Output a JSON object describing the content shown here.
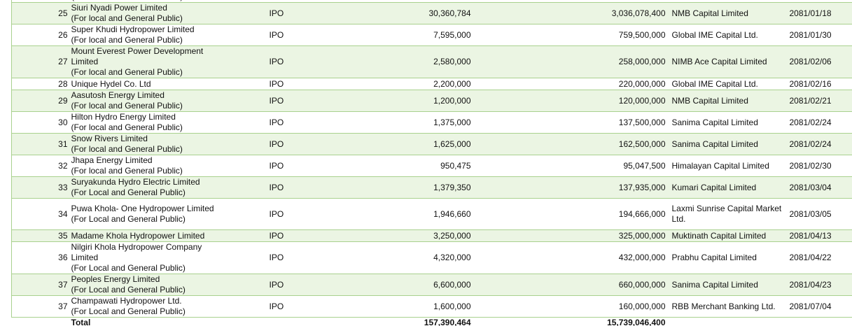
{
  "table": {
    "partial_top": "(For local and General Public)",
    "rows": [
      {
        "no": "25",
        "name": [
          "Siuri Nyadi Power Limited",
          "(For local and General Public)"
        ],
        "type": "IPO",
        "units": "30,360,784",
        "amount": "3,036,078,400",
        "manager": "NMB Capital Limited",
        "date": "2081/01/18"
      },
      {
        "no": "26",
        "name": [
          "Super Khudi Hydropower Limited",
          "(For local and General Public)"
        ],
        "type": "IPO",
        "units": "7,595,000",
        "amount": "759,500,000",
        "manager": "Global IME Capital Ltd.",
        "date": "2081/01/30"
      },
      {
        "no": "27",
        "name": [
          "Mount Everest Power Development",
          "Limited",
          "(For local and General Public)"
        ],
        "type": "IPO",
        "units": "2,580,000",
        "amount": "258,000,000",
        "manager": "NIMB Ace Capital Limited",
        "date": "2081/02/06"
      },
      {
        "no": "28",
        "name": [
          "Unique Hydel Co. Ltd"
        ],
        "type": "IPO",
        "units": "2,200,000",
        "amount": "220,000,000",
        "manager": "Global IME Capital Ltd.",
        "date": "2081/02/16"
      },
      {
        "no": "29",
        "name": [
          "Aasutosh Energy Limited",
          "(For local and General Public)"
        ],
        "type": "IPO",
        "units": "1,200,000",
        "amount": "120,000,000",
        "manager": "NMB Capital Limited",
        "date": "2081/02/21"
      },
      {
        "no": "30",
        "name": [
          "Hilton Hydro Energy Limited",
          "(For local and General Public)"
        ],
        "type": "IPO",
        "units": "1,375,000",
        "amount": "137,500,000",
        "manager": "Sanima Capital Limited",
        "date": "2081/02/24"
      },
      {
        "no": "31",
        "name": [
          "Snow Rivers Limited",
          "(For local and General Public)"
        ],
        "type": "IPO",
        "units": "1,625,000",
        "amount": "162,500,000",
        "manager": "Sanima Capital Limited",
        "date": "2081/02/24"
      },
      {
        "no": "32",
        "name": [
          "Jhapa Energy Limited",
          "(For local and General Public)"
        ],
        "type": "IPO",
        "units": "950,475",
        "amount": "95,047,500",
        "manager": "Himalayan Capital Limited",
        "date": "2081/02/30"
      },
      {
        "no": "33",
        "name": [
          "Suryakunda Hydro Electric Limited",
          "(For Local and General Public)"
        ],
        "type": "IPO",
        "units": "1,379,350",
        "amount": "137,935,000",
        "manager": "Kumari Capital Limited",
        "date": "2081/03/04"
      },
      {
        "no": "34",
        "name": [
          "Puwa Khola- One Hydropower Limited",
          "(For Local and General Public)"
        ],
        "type": "IPO",
        "units": "1,946,660",
        "amount": "194,666,000",
        "manager": "Laxmi Sunrise Capital Market Ltd.",
        "date": "2081/03/05"
      },
      {
        "no": "35",
        "name": [
          "Madame Khola Hydropower Limited"
        ],
        "type": "IPO",
        "units": "3,250,000",
        "amount": "325,000,000",
        "manager": "Muktinath Capital Limited",
        "date": "2081/04/13"
      },
      {
        "no": "36",
        "name": [
          "Nilgiri Khola Hydropower Company",
          "Limited",
          "(For Local and General Public)"
        ],
        "type": "IPO",
        "units": "4,320,000",
        "amount": "432,000,000",
        "manager": "Prabhu Capital Limited",
        "date": "2081/04/22"
      },
      {
        "no": "37",
        "name": [
          "Peoples Energy Limited",
          "(For Local and General Public)"
        ],
        "type": "IPO",
        "units": "6,600,000",
        "amount": "660,000,000",
        "manager": "Sanima Capital Limited",
        "date": "2081/04/23"
      },
      {
        "no": "37",
        "name": [
          "Champawati Hydropower Ltd.",
          "(For Local and General Public)"
        ],
        "type": "IPO",
        "units": "1,600,000",
        "amount": "160,000,000",
        "manager": "RBB Merchant Banking Ltd.",
        "date": "2081/07/04"
      }
    ],
    "total": {
      "label": "Total",
      "units": "157,390,464",
      "amount": "15,739,046,400"
    }
  }
}
